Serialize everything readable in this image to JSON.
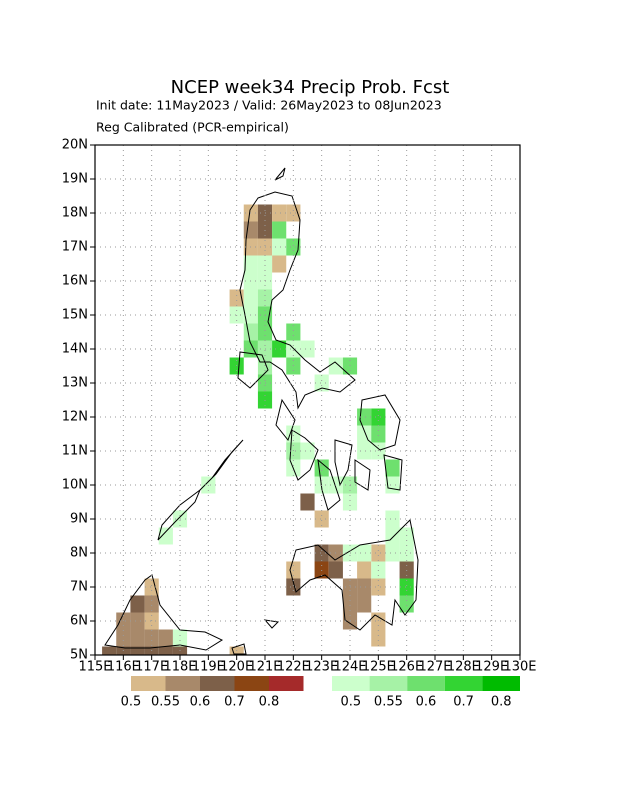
{
  "chart_data": {
    "type": "gridmap",
    "title": "NCEP week34 Precip Prob. Fcst",
    "subtitle": "Init date: 11May2023 / Valid: 26May2023 to 08Jun2023",
    "note": "Reg Calibrated (PCR-empirical)",
    "xlim": [
      115,
      130
    ],
    "ylim": [
      5,
      20
    ],
    "grid": true,
    "xticks": [
      {
        "value": 115,
        "label": "115E"
      },
      {
        "value": 116,
        "label": "116E"
      },
      {
        "value": 117,
        "label": "117E"
      },
      {
        "value": 118,
        "label": "118E"
      },
      {
        "value": 119,
        "label": "119E"
      },
      {
        "value": 120,
        "label": "120E"
      },
      {
        "value": 121,
        "label": "121E"
      },
      {
        "value": 122,
        "label": "122E"
      },
      {
        "value": 123,
        "label": "123E"
      },
      {
        "value": 124,
        "label": "124E"
      },
      {
        "value": 125,
        "label": "125E"
      },
      {
        "value": 126,
        "label": "126E"
      },
      {
        "value": 127,
        "label": "127E"
      },
      {
        "value": 128,
        "label": "128E"
      },
      {
        "value": 129,
        "label": "129E"
      },
      {
        "value": 130,
        "label": "130E"
      }
    ],
    "yticks": [
      {
        "value": 5,
        "label": "5N"
      },
      {
        "value": 6,
        "label": "6N"
      },
      {
        "value": 7,
        "label": "7N"
      },
      {
        "value": 8,
        "label": "8N"
      },
      {
        "value": 9,
        "label": "9N"
      },
      {
        "value": 10,
        "label": "10N"
      },
      {
        "value": 11,
        "label": "11N"
      },
      {
        "value": 12,
        "label": "12N"
      },
      {
        "value": 13,
        "label": "13N"
      },
      {
        "value": 14,
        "label": "14N"
      },
      {
        "value": 15,
        "label": "15N"
      },
      {
        "value": 16,
        "label": "16N"
      },
      {
        "value": 17,
        "label": "17N"
      },
      {
        "value": 18,
        "label": "18N"
      },
      {
        "value": 19,
        "label": "19N"
      },
      {
        "value": 20,
        "label": "20N"
      }
    ],
    "dry_legend": {
      "thresholds": [
        0.5,
        0.55,
        0.6,
        0.7,
        0.8
      ],
      "colors": [
        "#d8b98a",
        "#a8896a",
        "#7d6049",
        "#8b4513",
        "#a52a2a"
      ]
    },
    "wet_legend": {
      "thresholds": [
        0.5,
        0.55,
        0.6,
        0.7,
        0.8
      ],
      "colors": [
        "#ccffcc",
        "#a6f2a6",
        "#6ee06e",
        "#33d433",
        "#00bb00"
      ]
    },
    "dry_cells": [
      [
        120.5,
        18,
        0.5
      ],
      [
        121,
        18,
        0.6
      ],
      [
        121.5,
        18,
        0.5
      ],
      [
        122,
        18,
        0.5
      ],
      [
        120.5,
        17.5,
        0.55
      ],
      [
        121,
        17.5,
        0.6
      ],
      [
        120.5,
        17,
        0.5
      ],
      [
        121,
        17,
        0.5
      ],
      [
        121.5,
        16.5,
        0.5
      ],
      [
        120,
        15.5,
        0.5
      ],
      [
        122.5,
        9.5,
        0.6
      ],
      [
        123,
        9,
        0.5
      ],
      [
        123,
        8,
        0.6
      ],
      [
        123.5,
        8,
        0.55
      ],
      [
        125,
        8,
        0.5
      ],
      [
        122,
        7.5,
        0.5
      ],
      [
        123,
        7.5,
        0.7
      ],
      [
        123.5,
        7.5,
        0.6
      ],
      [
        124.5,
        7.5,
        0.5
      ],
      [
        126,
        7.5,
        0.6
      ],
      [
        122,
        7,
        0.6
      ],
      [
        124,
        7,
        0.55
      ],
      [
        124.5,
        7,
        0.55
      ],
      [
        125,
        7,
        0.5
      ],
      [
        124,
        6.5,
        0.55
      ],
      [
        124.5,
        6.5,
        0.55
      ],
      [
        124,
        6,
        0.55
      ],
      [
        125,
        6,
        0.5
      ],
      [
        125,
        5.5,
        0.5
      ],
      [
        117,
        7,
        0.5
      ],
      [
        116.5,
        6.5,
        0.6
      ],
      [
        117,
        6.5,
        0.55
      ],
      [
        116,
        6,
        0.55
      ],
      [
        116.5,
        6,
        0.55
      ],
      [
        117,
        6,
        0.5
      ],
      [
        116,
        5.5,
        0.55
      ],
      [
        116.5,
        5.5,
        0.55
      ],
      [
        117,
        5.5,
        0.55
      ],
      [
        117.5,
        5.5,
        0.55
      ],
      [
        115.5,
        5,
        0.6
      ],
      [
        116,
        5,
        0.6
      ],
      [
        116.5,
        5,
        0.6
      ],
      [
        117,
        5,
        0.6
      ],
      [
        117.5,
        5,
        0.6
      ],
      [
        118,
        5,
        0.6
      ],
      [
        120,
        5,
        0.5
      ]
    ],
    "wet_cells": [
      [
        121.5,
        17.5,
        0.6
      ],
      [
        121.5,
        17,
        0.5
      ],
      [
        122,
        17,
        0.6
      ],
      [
        120.5,
        16.5,
        0.5
      ],
      [
        121,
        16.5,
        0.5
      ],
      [
        120.5,
        16,
        0.5
      ],
      [
        121,
        16,
        0.5
      ],
      [
        120.5,
        15.5,
        0.5
      ],
      [
        121,
        15.5,
        0.55
      ],
      [
        120,
        15,
        0.5
      ],
      [
        120.5,
        15,
        0.5
      ],
      [
        121,
        15,
        0.6
      ],
      [
        120.5,
        14.5,
        0.55
      ],
      [
        121,
        14.5,
        0.6
      ],
      [
        122,
        14.5,
        0.6
      ],
      [
        120.5,
        14,
        0.6
      ],
      [
        121,
        14,
        0.55
      ],
      [
        121.5,
        14,
        0.7
      ],
      [
        122,
        14,
        0.5
      ],
      [
        122.5,
        14,
        0.5
      ],
      [
        120,
        13.5,
        0.7
      ],
      [
        121,
        13.5,
        0.55
      ],
      [
        122,
        13.5,
        0.6
      ],
      [
        123.5,
        13.5,
        0.5
      ],
      [
        124,
        13.5,
        0.6
      ],
      [
        121,
        13,
        0.6
      ],
      [
        123,
        13,
        0.5
      ],
      [
        121,
        12.5,
        0.7
      ],
      [
        124.5,
        12,
        0.6
      ],
      [
        125,
        12,
        0.7
      ],
      [
        122,
        11.5,
        0.5
      ],
      [
        124.5,
        11.5,
        0.5
      ],
      [
        125,
        11.5,
        0.6
      ],
      [
        122,
        11,
        0.55
      ],
      [
        122.5,
        11,
        0.5
      ],
      [
        124.5,
        11,
        0.5
      ],
      [
        125,
        11,
        0.5
      ],
      [
        125.5,
        10.5,
        0.6
      ],
      [
        123,
        10.5,
        0.6
      ],
      [
        122,
        10.5,
        0.5
      ],
      [
        123,
        10,
        0.5
      ],
      [
        123.5,
        10,
        0.5
      ],
      [
        124,
        10,
        0.55
      ],
      [
        125.5,
        10,
        0.5
      ],
      [
        124,
        9.5,
        0.5
      ],
      [
        125.5,
        9,
        0.5
      ],
      [
        125.5,
        8.5,
        0.5
      ],
      [
        126,
        8.5,
        0.5
      ],
      [
        124,
        8,
        0.5
      ],
      [
        124.5,
        8,
        0.5
      ],
      [
        125.5,
        8,
        0.5
      ],
      [
        126,
        8,
        0.5
      ],
      [
        125,
        7.5,
        0.5
      ],
      [
        126,
        7,
        0.7
      ],
      [
        126,
        6.5,
        0.6
      ],
      [
        119,
        10,
        0.5
      ],
      [
        118,
        9,
        0.5
      ],
      [
        117.5,
        8.5,
        0.5
      ],
      [
        118,
        5.5,
        0.5
      ]
    ]
  }
}
